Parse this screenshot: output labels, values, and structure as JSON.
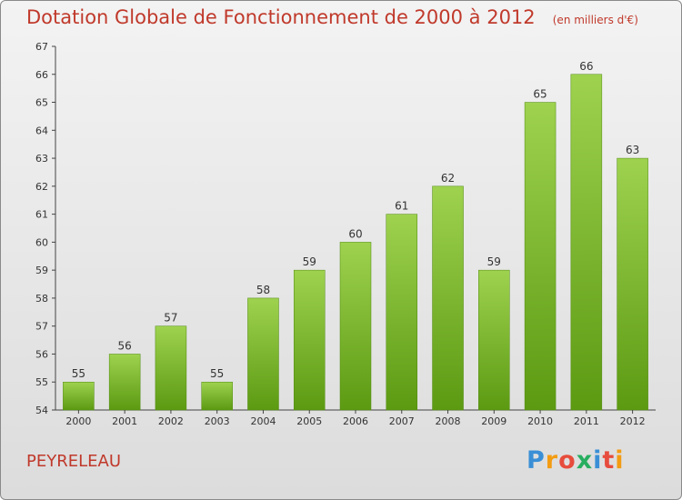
{
  "title": "Dotation Globale de Fonctionnement de 2000 à 2012",
  "units": "(en milliers d'€)",
  "commune": "PEYRELEAU",
  "logo": {
    "letters": [
      "P",
      "r",
      "o",
      "x",
      "i",
      "t",
      "i"
    ],
    "colors": [
      "#3a8fd6",
      "#f39c12",
      "#e74c3c",
      "#27ae60",
      "#3a8fd6",
      "#e74c3c",
      "#f39c12"
    ]
  },
  "colors": {
    "bar_top": "#9ed24f",
    "bar_bottom": "#5c9a12",
    "title": "#c0392b"
  },
  "chart_data": {
    "type": "bar",
    "categories": [
      "2000",
      "2001",
      "2002",
      "2003",
      "2004",
      "2005",
      "2006",
      "2007",
      "2008",
      "2009",
      "2010",
      "2011",
      "2012"
    ],
    "values": [
      55,
      56,
      57,
      55,
      58,
      59,
      60,
      61,
      62,
      59,
      65,
      66,
      63
    ],
    "ylim": [
      54,
      67
    ],
    "yticks": [
      54,
      55,
      56,
      57,
      58,
      59,
      60,
      61,
      62,
      63,
      64,
      65,
      66,
      67
    ],
    "grid": false,
    "data_labels": true
  }
}
